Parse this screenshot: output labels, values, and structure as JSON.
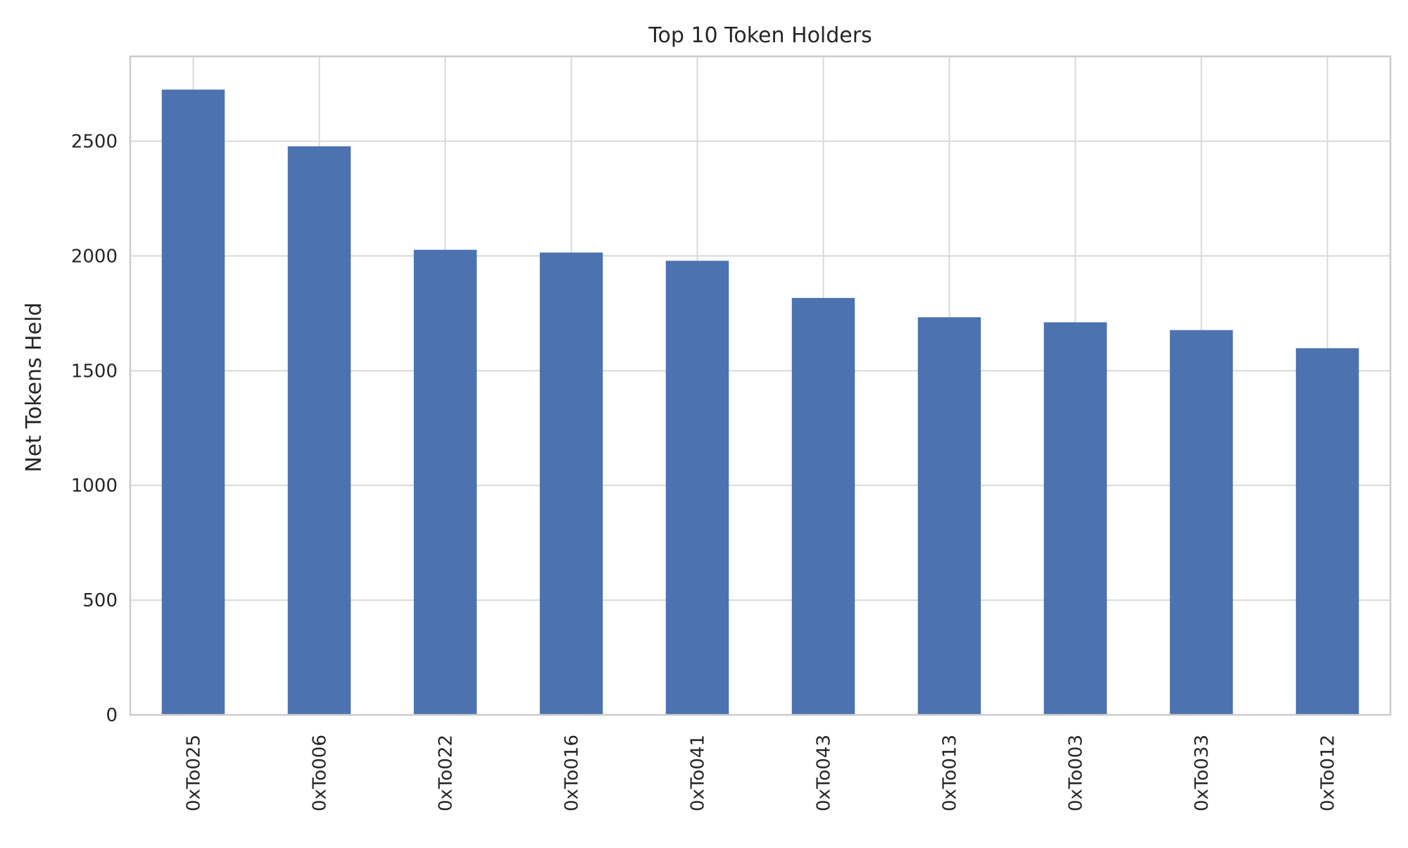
{
  "chart_data": {
    "type": "bar",
    "title": "Top 10 Token Holders",
    "xlabel": "",
    "ylabel": "Net Tokens Held",
    "categories": [
      "0xTo025",
      "0xTo006",
      "0xTo022",
      "0xTo016",
      "0xTo041",
      "0xTo043",
      "0xTo013",
      "0xTo003",
      "0xTo033",
      "0xTo012"
    ],
    "values": [
      2725,
      2478,
      2027,
      2015,
      1979,
      1817,
      1733,
      1711,
      1677,
      1598
    ],
    "ylim": [
      0,
      2870
    ],
    "yticks": [
      0,
      500,
      1000,
      1500,
      2000,
      2500
    ],
    "grid": true,
    "bar_color": "#4c72b0",
    "grid_color": "#d9d9d9",
    "spine_color": "#cccccc"
  }
}
